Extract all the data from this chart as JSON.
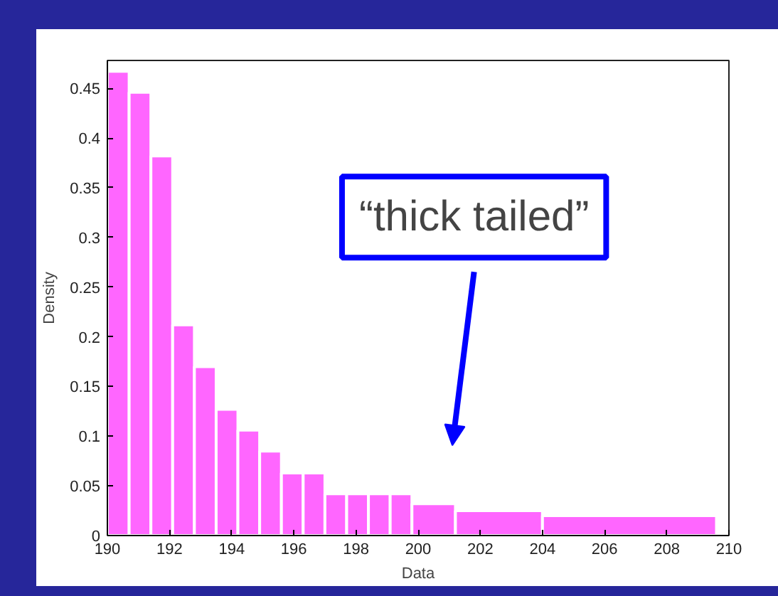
{
  "chart_data": {
    "type": "histogram",
    "xlabel": "Data",
    "ylabel": "Density",
    "bins": [
      190,
      190.7,
      191.4,
      192.1,
      192.8,
      193.5,
      194.2,
      194.9,
      195.6,
      196.3,
      197,
      197.7,
      198.4,
      199.1,
      199.8,
      201.2,
      204,
      209.6
    ],
    "values": [
      0.467,
      0.446,
      0.382,
      0.212,
      0.17,
      0.127,
      0.106,
      0.085,
      0.063,
      0.063,
      0.042,
      0.042,
      0.042,
      0.042,
      0.032,
      0.025,
      0.02
    ],
    "color": "#ff66ff",
    "xlim": [
      190,
      210
    ],
    "xticks": [
      190,
      192,
      194,
      196,
      198,
      200,
      202,
      204,
      206,
      208,
      210
    ],
    "ylim": [
      0,
      0.478
    ],
    "yticks": [
      0,
      0.05,
      0.1,
      0.15,
      0.2,
      0.25,
      0.3,
      0.35,
      0.4,
      0.45
    ],
    "grid": false,
    "annotations": [
      "“thick tailed”"
    ]
  }
}
